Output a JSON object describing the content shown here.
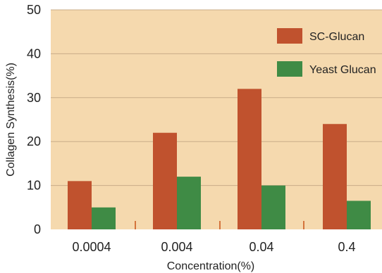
{
  "chart_data": {
    "type": "bar",
    "title": "",
    "xlabel": "Concentration(%)",
    "ylabel": "Collagen Synthesis(%)",
    "ylim": [
      0,
      50
    ],
    "yticks": [
      "0",
      "10",
      "20",
      "30",
      "40",
      "50"
    ],
    "categories": [
      "0.0004",
      "0.004",
      "0.04",
      "0.4"
    ],
    "series": [
      {
        "name": "SC-Glucan",
        "values": [
          11,
          22,
          32,
          24
        ]
      },
      {
        "name": "Yeast Glucan",
        "values": [
          5,
          12,
          10,
          6.5
        ]
      }
    ],
    "grid": true,
    "legend": "top-right"
  },
  "colors": {
    "plot_background": "#f5d9ae",
    "grid": "#c9ad88",
    "series": [
      "#c0522e",
      "#3f8b45"
    ],
    "divider": "#d4733c",
    "axis": "#555555"
  }
}
